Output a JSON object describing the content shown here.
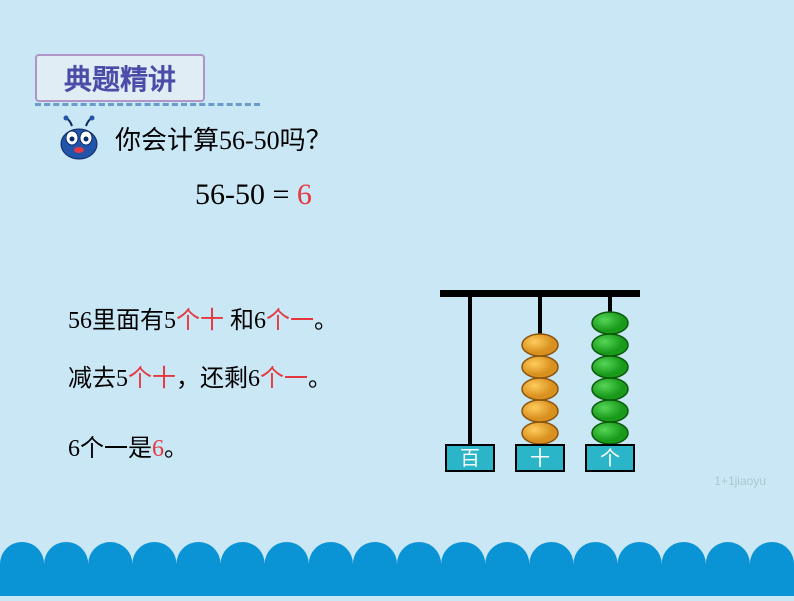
{
  "title": "典题精讲",
  "question": "你会计算56-50吗？",
  "equation_lhs": "56-50  =  ",
  "equation_result": "6",
  "line1_parts": [
    "56里面有5",
    "个十",
    " 和6",
    "个一",
    "。"
  ],
  "line2_parts": [
    "减去5",
    "个十",
    "，还剩6",
    "个一",
    "。"
  ],
  "line3_parts": [
    "6个一是",
    "6",
    "。"
  ],
  "abacus": {
    "labels": [
      "百",
      "十",
      "个"
    ],
    "rods": [
      {
        "beads": 0,
        "color": "#d8901f",
        "stroke": "#8a5410"
      },
      {
        "beads": 5,
        "color": "#d8901f",
        "stroke": "#8a5410"
      },
      {
        "beads": 6,
        "color": "#1a9a1a",
        "stroke": "#0a5a0a"
      }
    ],
    "label_bg": "#2bb5c8",
    "label_text_color": "#ffffff",
    "frame_color": "#000000"
  },
  "scallop": {
    "color": "#0a94d6",
    "count": 18
  },
  "character_colors": {
    "body": "#2255aa",
    "eye": "#ffffff",
    "mouth": "#e63946"
  },
  "watermark": "1+1jiaoyu"
}
